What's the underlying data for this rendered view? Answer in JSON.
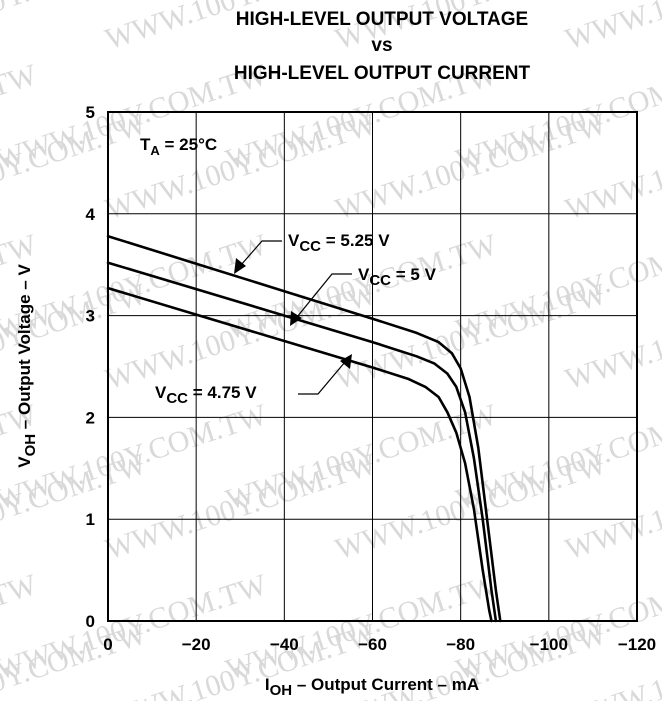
{
  "title": {
    "line1": "HIGH-LEVEL OUTPUT VOLTAGE",
    "line2": "vs",
    "line3": "HIGH-LEVEL OUTPUT CURRENT"
  },
  "watermark": "WWW.100Y.COM.TW",
  "chart_data": {
    "type": "line",
    "xlabel": {
      "main": "I",
      "sub": "OH",
      "rest": " – Output Current – mA"
    },
    "ylabel": {
      "main": "V",
      "sub": "OH",
      "rest": " – Output Voltage – V"
    },
    "xlim": [
      0,
      -120
    ],
    "ylim": [
      0,
      5
    ],
    "xticks": [
      0,
      -20,
      -40,
      -60,
      -80,
      -100,
      -120
    ],
    "xtick_labels": [
      "0",
      "−20",
      "−40",
      "−60",
      "−80",
      "−100",
      "−120"
    ],
    "yticks": [
      0,
      1,
      2,
      3,
      4,
      5
    ],
    "ytick_labels": [
      "0",
      "1",
      "2",
      "3",
      "4",
      "5"
    ],
    "grid": true,
    "condition": {
      "main": "T",
      "sub": "A",
      "rest": " = 25°C"
    },
    "series": [
      {
        "name": "VCC = 5.25 V",
        "label": {
          "main": "V",
          "sub": "CC",
          "rest": " = 5.25 V"
        },
        "x": [
          0,
          -20,
          -40,
          -60,
          -70,
          -75,
          -78,
          -80,
          -82,
          -84,
          -86,
          -88,
          -89
        ],
        "y": [
          3.78,
          3.51,
          3.24,
          2.97,
          2.83,
          2.74,
          2.63,
          2.48,
          2.2,
          1.7,
          1.0,
          0.3,
          0
        ]
      },
      {
        "name": "VCC = 5 V",
        "label": {
          "main": "V",
          "sub": "CC",
          "rest": " = 5 V"
        },
        "x": [
          0,
          -20,
          -40,
          -60,
          -70,
          -74,
          -77,
          -79,
          -81,
          -83,
          -85,
          -87,
          -88
        ],
        "y": [
          3.52,
          3.26,
          3.0,
          2.74,
          2.6,
          2.53,
          2.43,
          2.3,
          2.05,
          1.6,
          1.0,
          0.3,
          0
        ]
      },
      {
        "name": "VCC = 4.75 V",
        "label": {
          "main": "V",
          "sub": "CC",
          "rest": " = 4.75 V"
        },
        "x": [
          0,
          -20,
          -40,
          -60,
          -68,
          -72,
          -75,
          -77,
          -79,
          -81,
          -83,
          -85,
          -86.5,
          -87
        ],
        "y": [
          3.27,
          3.01,
          2.75,
          2.49,
          2.38,
          2.3,
          2.2,
          2.05,
          1.85,
          1.55,
          1.1,
          0.5,
          0.1,
          0
        ]
      }
    ]
  }
}
